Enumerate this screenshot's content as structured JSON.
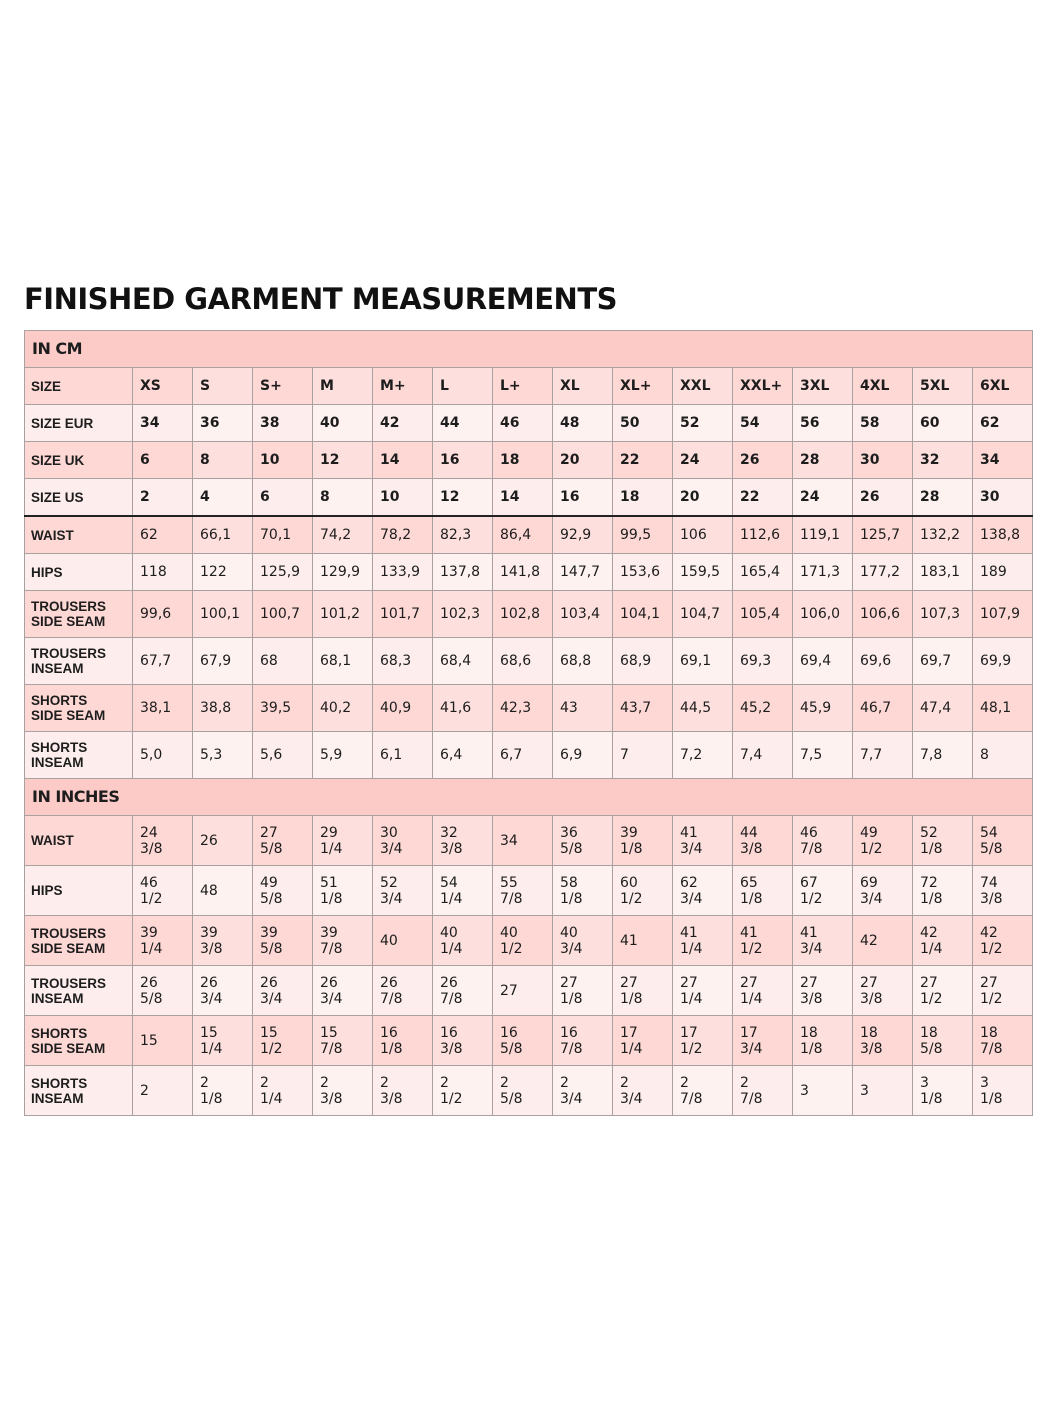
{
  "title": "FINISHED GARMENT MEASUREMENTS",
  "colors": {
    "section_header": "#fccbc8",
    "row_dark": "#fdd8d5",
    "row_light": "#fdeeed",
    "border": "#a9a1a0"
  },
  "sections": [
    {
      "heading": "IN CM",
      "rows": [
        {
          "label": "SIZE",
          "values": [
            "XS",
            "S",
            "S+",
            "M",
            "M+",
            "L",
            "L+",
            "XL",
            "XL+",
            "XXL",
            "XXL+",
            "3XL",
            "4XL",
            "5XL",
            "6XL"
          ]
        },
        {
          "label": "SIZE EUR",
          "values": [
            "34",
            "36",
            "38",
            "40",
            "42",
            "44",
            "46",
            "48",
            "50",
            "52",
            "54",
            "56",
            "58",
            "60",
            "62"
          ]
        },
        {
          "label": "SIZE UK",
          "values": [
            "6",
            "8",
            "10",
            "12",
            "14",
            "16",
            "18",
            "20",
            "22",
            "24",
            "26",
            "28",
            "30",
            "32",
            "34"
          ]
        },
        {
          "label": "SIZE US",
          "values": [
            "2",
            "4",
            "6",
            "8",
            "10",
            "12",
            "14",
            "16",
            "18",
            "20",
            "22",
            "24",
            "26",
            "28",
            "30"
          ]
        },
        {
          "label": "WAIST",
          "values": [
            "62",
            "66,1",
            "70,1",
            "74,2",
            "78,2",
            "82,3",
            "86,4",
            "92,9",
            "99,5",
            "106",
            "112,6",
            "119,1",
            "125,7",
            "132,2",
            "138,8"
          ]
        },
        {
          "label": "HIPS",
          "values": [
            "118",
            "122",
            "125,9",
            "129,9",
            "133,9",
            "137,8",
            "141,8",
            "147,7",
            "153,6",
            "159,5",
            "165,4",
            "171,3",
            "177,2",
            "183,1",
            "189"
          ]
        },
        {
          "label": "TROUSERS\nSIDE SEAM",
          "values": [
            "99,6",
            "100,1",
            "100,7",
            "101,2",
            "101,7",
            "102,3",
            "102,8",
            "103,4",
            "104,1",
            "104,7",
            "105,4",
            "106,0",
            "106,6",
            "107,3",
            "107,9"
          ]
        },
        {
          "label": "TROUSERS\nINSEAM",
          "values": [
            "67,7",
            "67,9",
            "68",
            "68,1",
            "68,3",
            "68,4",
            "68,6",
            "68,8",
            "68,9",
            "69,1",
            "69,3",
            "69,4",
            "69,6",
            "69,7",
            "69,9"
          ]
        },
        {
          "label": "SHORTS\nSIDE SEAM",
          "values": [
            "38,1",
            "38,8",
            "39,5",
            "40,2",
            "40,9",
            "41,6",
            "42,3",
            "43",
            "43,7",
            "44,5",
            "45,2",
            "45,9",
            "46,7",
            "47,4",
            "48,1"
          ]
        },
        {
          "label": "SHORTS\nINSEAM",
          "values": [
            "5,0",
            "5,3",
            "5,6",
            "5,9",
            "6,1",
            "6,4",
            "6,7",
            "6,9",
            "7",
            "7,2",
            "7,4",
            "7,5",
            "7,7",
            "7,8",
            "8"
          ]
        }
      ]
    },
    {
      "heading": "IN INCHES",
      "rows": [
        {
          "label": "WAIST",
          "values": [
            "24\n3/8",
            "26",
            "27\n5/8",
            "29\n1/4",
            "30\n3/4",
            "32\n3/8",
            "34",
            "36\n5/8",
            "39\n1/8",
            "41\n3/4",
            "44\n3/8",
            "46\n7/8",
            "49\n1/2",
            "52\n1/8",
            "54\n5/8"
          ]
        },
        {
          "label": "HIPS",
          "values": [
            "46\n1/2",
            "48",
            "49\n5/8",
            "51\n1/8",
            "52\n3/4",
            "54\n1/4",
            "55\n7/8",
            "58\n1/8",
            "60\n1/2",
            "62\n3/4",
            "65\n1/8",
            "67\n1/2",
            "69\n3/4",
            "72\n1/8",
            "74\n3/8"
          ]
        },
        {
          "label": "TROUSERS\nSIDE SEAM",
          "values": [
            "39\n1/4",
            "39\n3/8",
            "39\n5/8",
            "39\n7/8",
            "40",
            "40\n1/4",
            "40\n1/2",
            "40\n3/4",
            "41",
            "41\n1/4",
            "41\n1/2",
            "41\n3/4",
            "42",
            "42\n1/4",
            "42\n1/2"
          ]
        },
        {
          "label": "TROUSERS\nINSEAM",
          "values": [
            "26\n5/8",
            "26\n3/4",
            "26\n3/4",
            "26\n3/4",
            "26\n7/8",
            "26\n7/8",
            "27",
            "27\n1/8",
            "27\n1/8",
            "27\n1/4",
            "27\n1/4",
            "27\n3/8",
            "27\n3/8",
            "27\n1/2",
            "27\n1/2"
          ]
        },
        {
          "label": "SHORTS\nSIDE SEAM",
          "values": [
            "15",
            "15\n1/4",
            "15\n1/2",
            "15\n7/8",
            "16\n1/8",
            "16\n3/8",
            "16\n5/8",
            "16\n7/8",
            "17\n1/4",
            "17\n1/2",
            "17\n3/4",
            "18\n1/8",
            "18\n3/8",
            "18\n5/8",
            "18\n7/8"
          ]
        },
        {
          "label": "SHORTS\nINSEAM",
          "values": [
            "2",
            "2\n1/8",
            "2\n1/4",
            "2\n3/8",
            "2\n3/8",
            "2\n1/2",
            "2\n5/8",
            "2\n3/4",
            "2\n3/4",
            "2\n7/8",
            "2\n7/8",
            "3",
            "3",
            "3\n1/8",
            "3\n1/8"
          ]
        }
      ]
    }
  ]
}
